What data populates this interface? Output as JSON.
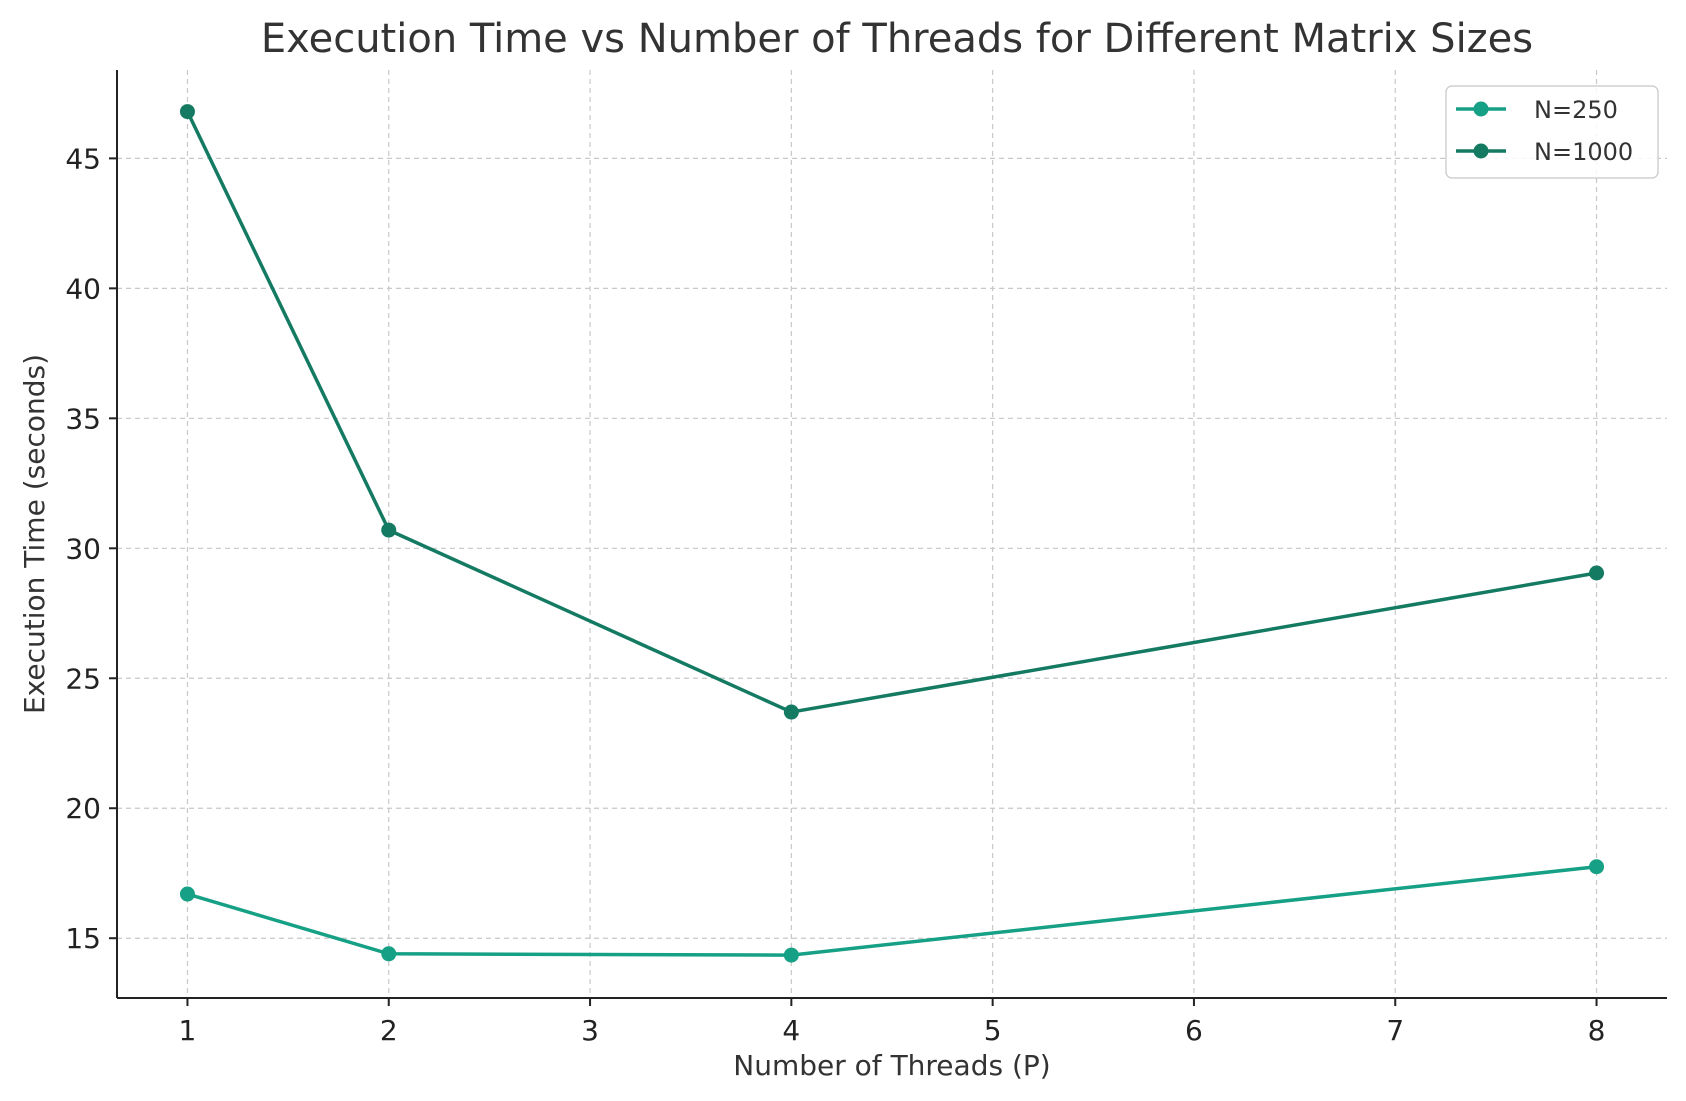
{
  "chart_data": {
    "type": "line",
    "title": "Execution Time vs Number of Threads for Different Matrix Sizes",
    "xlabel": "Number of Threads (P)",
    "ylabel": "Execution Time (seconds)",
    "xlim": [
      0.65,
      8.35
    ],
    "ylim": [
      12.7,
      48.4
    ],
    "x_ticks": [
      1,
      2,
      3,
      4,
      5,
      6,
      7,
      8
    ],
    "y_ticks": [
      15,
      20,
      25,
      30,
      35,
      40,
      45
    ],
    "grid": true,
    "legend_position": "top-right",
    "series": [
      {
        "name": "N=250",
        "color": "#16a085",
        "x": [
          1,
          2,
          4,
          8
        ],
        "y": [
          16.7,
          14.4,
          14.35,
          17.75
        ]
      },
      {
        "name": "N=1000",
        "color": "#147a62",
        "x": [
          1,
          2,
          4,
          8
        ],
        "y": [
          46.8,
          30.7,
          23.7,
          29.05
        ]
      }
    ]
  }
}
